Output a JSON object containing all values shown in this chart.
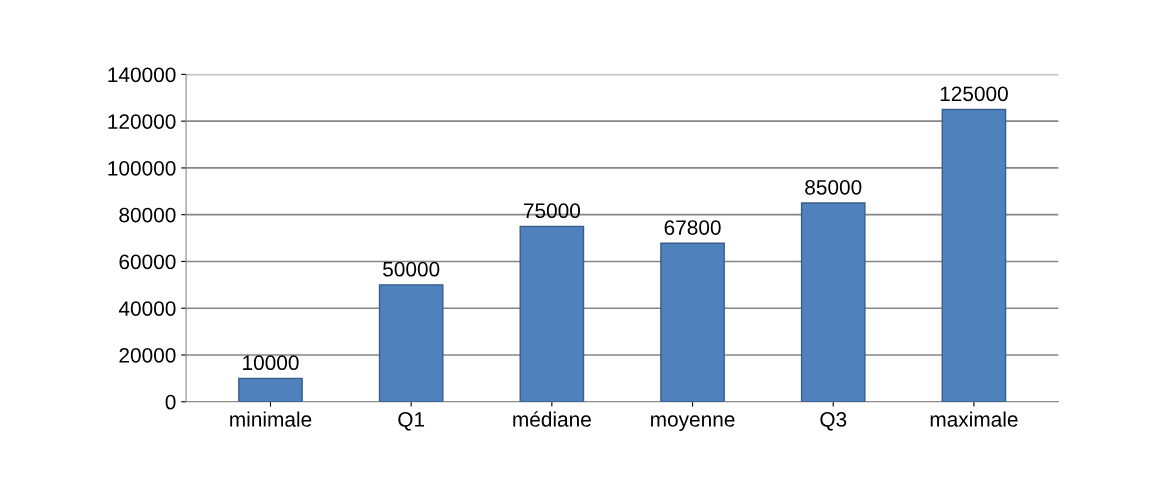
{
  "chart_data": {
    "type": "bar",
    "categories": [
      "minimale",
      "Q1",
      "médiane",
      "moyenne",
      "Q3",
      "maximale"
    ],
    "values": [
      10000,
      50000,
      75000,
      67800,
      85000,
      125000
    ],
    "color": "#4f81bd",
    "ylim": [
      0,
      140000
    ],
    "yticks": [
      0,
      20000,
      40000,
      60000,
      80000,
      100000,
      120000,
      140000
    ],
    "grid": "y",
    "data_labels": true
  }
}
